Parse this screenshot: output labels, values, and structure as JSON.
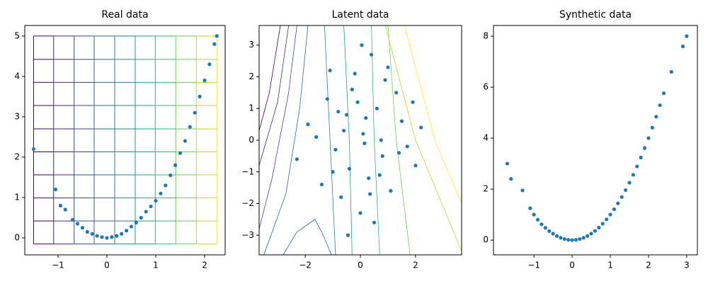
{
  "chart_data": [
    {
      "type": "scatter",
      "title": "Real data",
      "color": "#1f77b4",
      "x": [
        -1.5,
        -1.05,
        -0.95,
        -0.85,
        -0.7,
        -0.6,
        -0.5,
        -0.4,
        -0.3,
        -0.2,
        -0.1,
        0,
        0.1,
        0.2,
        0.3,
        0.4,
        0.5,
        0.6,
        0.7,
        0.8,
        0.9,
        1.0,
        1.1,
        1.2,
        1.3,
        1.4,
        1.5,
        1.6,
        1.7,
        1.8,
        1.9,
        2.0,
        2.1,
        2.2,
        2.25
      ],
      "y": [
        2.2,
        1.2,
        0.8,
        0.7,
        0.45,
        0.35,
        0.25,
        0.15,
        0.1,
        0.05,
        0.02,
        0,
        0.02,
        0.05,
        0.1,
        0.18,
        0.28,
        0.38,
        0.5,
        0.65,
        0.78,
        0.92,
        1.1,
        1.3,
        1.55,
        1.8,
        2.1,
        2.4,
        2.75,
        3.1,
        3.5,
        3.9,
        4.3,
        4.8,
        5.0
      ],
      "xlim": [
        -1.68,
        2.42
      ],
      "ylim": [
        -0.42,
        5.26
      ],
      "xticks": [
        {
          "value": -1,
          "label": "−1"
        },
        0,
        1,
        2
      ],
      "yticks": [
        0,
        1,
        2,
        3,
        4,
        5
      ],
      "grid_lines": {
        "x": [
          -1.5,
          -1.09,
          -0.67,
          -0.26,
          0.16,
          0.58,
          0.99,
          1.41,
          1.83,
          2.25
        ],
        "y": [
          -0.15,
          0.42,
          0.99,
          1.56,
          2.13,
          2.7,
          3.28,
          3.85,
          4.42,
          5.0
        ],
        "colors": [
          "#440154",
          "#482878",
          "#3e4989",
          "#31688e",
          "#26828e",
          "#1f9e89",
          "#35b779",
          "#6ece58",
          "#b5de2b",
          "#fde725"
        ]
      }
    },
    {
      "type": "scatter",
      "title": "Latent data",
      "color": "#1f77b4",
      "x": [
        0.1,
        -0.5,
        0.8,
        -1.2,
        1.5,
        0.3,
        -0.2,
        0.6,
        -0.9,
        1.1,
        -1.6,
        2.0,
        0.0,
        -0.4,
        0.9,
        -1.9,
        1.7,
        0.4,
        -0.7,
        0.2,
        -1.0,
        1.3,
        -0.1,
        0.7,
        -2.3,
        2.2,
        -0.6,
        0.5,
        -1.4,
        1.0,
        0.15,
        -0.3,
        0.35,
        -0.8,
        1.9,
        -1.1,
        0.05,
        0.75,
        -0.45,
        1.4
      ],
      "y": [
        0.2,
        0.8,
        -0.5,
        1.3,
        0.6,
        -1.2,
        2.1,
        1.0,
        -0.3,
        -1.6,
        0.1,
        -0.8,
        -2.3,
        -0.9,
        1.9,
        0.5,
        -0.2,
        2.7,
        -1.8,
        0.7,
        -1.0,
        1.5,
        1.2,
        -1.1,
        -0.6,
        0.4,
        0.3,
        -2.6,
        -1.4,
        2.3,
        -0.1,
        1.6,
        -1.7,
        0.9,
        1.2,
        2.2,
        3.0,
        0.0,
        -3.0,
        -0.4
      ],
      "xlim": [
        -3.67,
        3.67
      ],
      "ylim": [
        -3.62,
        3.62
      ],
      "xticks": [
        {
          "value": -2,
          "label": "−2"
        },
        0,
        2
      ],
      "yticks": [
        {
          "value": -3,
          "label": "−3"
        },
        {
          "value": -2,
          "label": "−2"
        },
        {
          "value": -1,
          "label": "−1"
        },
        0,
        1,
        2,
        3
      ],
      "contours": [
        {
          "color": "#440154",
          "x": [
            -2.9,
            -3.3,
            -3.67
          ],
          "y": [
            3.62,
            1.5,
            0.3
          ]
        },
        {
          "color": "#482878",
          "x": [
            -2.6,
            -3.0,
            -3.67
          ],
          "y": [
            3.62,
            1.2,
            -0.8
          ]
        },
        {
          "color": "#3e4989",
          "x": [
            -2.3,
            -2.6,
            -3.2,
            -3.67
          ],
          "y": [
            3.62,
            1.5,
            -1.2,
            -2.8
          ]
        },
        {
          "color": "#31688e",
          "x": [
            -1.9,
            -2.2,
            -2.7,
            -3.5
          ],
          "y": [
            3.62,
            1.0,
            -1.7,
            -3.62
          ]
        },
        {
          "color": "#26828e",
          "x": [
            -1.3,
            -1.1,
            -0.9
          ],
          "y": [
            3.62,
            0,
            -3.62
          ]
        },
        {
          "color": "#1f9e89",
          "x": [
            -0.6,
            -0.4,
            -0.3
          ],
          "y": [
            3.62,
            0,
            -3.62
          ]
        },
        {
          "color": "#35b779",
          "x": [
            0.4,
            0.5,
            0.7
          ],
          "y": [
            3.62,
            0,
            -3.62
          ]
        },
        {
          "color": "#6ece58",
          "x": [
            1.0,
            1.3,
            1.8
          ],
          "y": [
            3.62,
            0,
            -3.62
          ]
        },
        {
          "color": "#b5de2b",
          "x": [
            0.9,
            2.0,
            3.67
          ],
          "y": [
            3.62,
            0,
            -3.5
          ]
        },
        {
          "color": "#fde725",
          "x": [
            1.6,
            2.7,
            3.67
          ],
          "y": [
            3.62,
            0,
            -2.0
          ]
        },
        {
          "color": "#31688e",
          "x": [
            -2.8,
            -2.3,
            -1.65,
            -1.4,
            -1.05
          ],
          "y": [
            -3.62,
            -2.9,
            -2.5,
            -2.9,
            -3.62
          ]
        }
      ]
    },
    {
      "type": "scatter",
      "title": "Synthetic data",
      "color": "#1f77b4",
      "x": [
        -1.7,
        -1.6,
        -1.3,
        -1.1,
        -1.0,
        -0.9,
        -0.8,
        -0.7,
        -0.6,
        -0.5,
        -0.4,
        -0.3,
        -0.2,
        -0.1,
        0,
        0.1,
        0.2,
        0.3,
        0.4,
        0.5,
        0.6,
        0.7,
        0.8,
        0.9,
        1.0,
        1.1,
        1.2,
        1.3,
        1.4,
        1.5,
        1.6,
        1.7,
        1.8,
        1.9,
        2.0,
        2.1,
        2.2,
        2.3,
        2.4,
        2.6,
        2.9,
        3.0
      ],
      "y": [
        3.0,
        2.4,
        1.95,
        1.25,
        1.0,
        0.8,
        0.62,
        0.48,
        0.35,
        0.25,
        0.16,
        0.09,
        0.04,
        0.01,
        0,
        0.01,
        0.04,
        0.09,
        0.16,
        0.25,
        0.36,
        0.49,
        0.64,
        0.81,
        1.0,
        1.21,
        1.44,
        1.69,
        1.96,
        2.25,
        2.56,
        2.89,
        3.24,
        3.61,
        4.0,
        4.41,
        4.84,
        5.29,
        5.76,
        6.6,
        7.6,
        8.0
      ],
      "xlim": [
        -2.06,
        3.28
      ],
      "ylim": [
        -0.58,
        8.42
      ],
      "xticks": [
        {
          "value": -1,
          "label": "−1"
        },
        0,
        1,
        2,
        3
      ],
      "yticks": [
        0,
        2,
        4,
        6,
        8
      ]
    }
  ]
}
